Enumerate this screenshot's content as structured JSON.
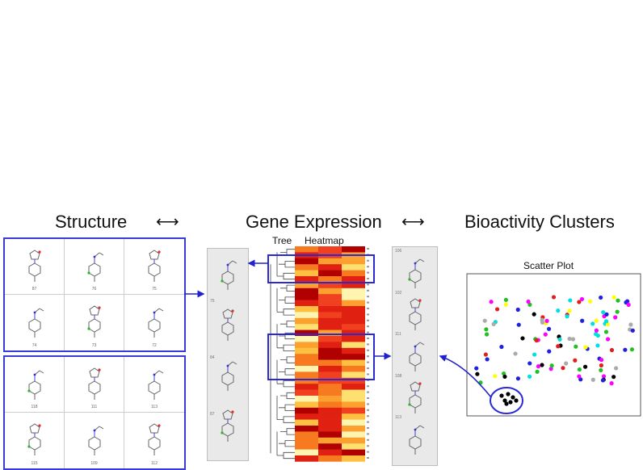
{
  "headers": {
    "structure": "Structure",
    "gene_expression": "Gene Expression",
    "bioactivity": "Bioactivity Clusters"
  },
  "heatmap_labels": {
    "tree": "Tree",
    "heatmap": "Heatmap"
  },
  "scatter_title": "Scatter Plot",
  "panel_top_ids": [
    "87",
    "76",
    "75",
    "74",
    "73",
    "72"
  ],
  "panel_bottom_ids": [
    "118",
    "111",
    "113",
    "115",
    "109",
    "112"
  ],
  "strip_left_ids": [
    "75",
    "84",
    "87"
  ],
  "strip_right_ids": [
    "106",
    "102",
    "111",
    "108",
    "113"
  ],
  "colors": {
    "accent": "#3a3ad8"
  }
}
